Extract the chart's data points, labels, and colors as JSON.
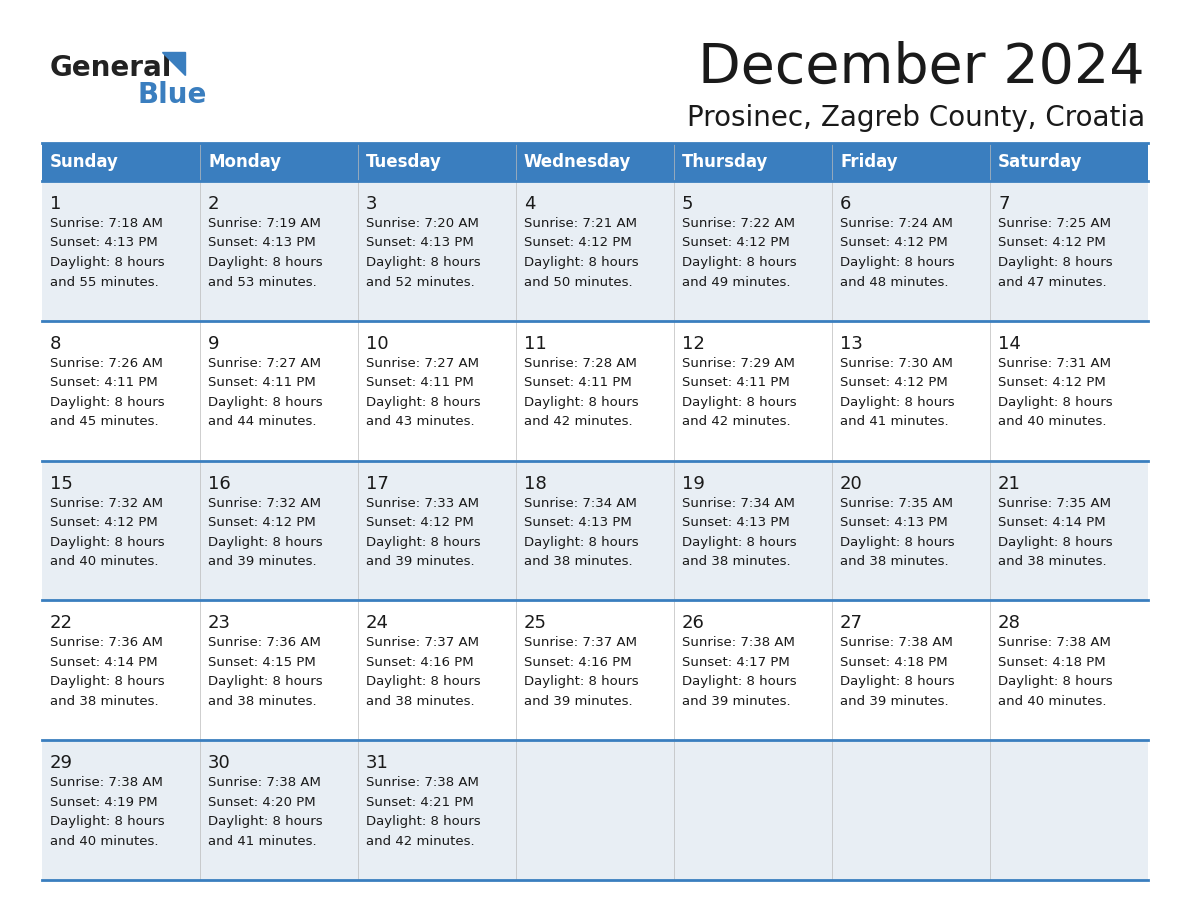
{
  "title": "December 2024",
  "subtitle": "Prosinec, Zagreb County, Croatia",
  "header_color": "#3a7ebf",
  "header_text_color": "#ffffff",
  "cell_bg_odd": "#e8eef4",
  "cell_bg_even": "#ffffff",
  "border_color": "#3a7ebf",
  "day_headers": [
    "Sunday",
    "Monday",
    "Tuesday",
    "Wednesday",
    "Thursday",
    "Friday",
    "Saturday"
  ],
  "weeks": [
    [
      {
        "day": "1",
        "sunrise": "7:18 AM",
        "sunset": "4:13 PM",
        "dl1": "Daylight: 8 hours",
        "dl2": "and 55 minutes."
      },
      {
        "day": "2",
        "sunrise": "7:19 AM",
        "sunset": "4:13 PM",
        "dl1": "Daylight: 8 hours",
        "dl2": "and 53 minutes."
      },
      {
        "day": "3",
        "sunrise": "7:20 AM",
        "sunset": "4:13 PM",
        "dl1": "Daylight: 8 hours",
        "dl2": "and 52 minutes."
      },
      {
        "day": "4",
        "sunrise": "7:21 AM",
        "sunset": "4:12 PM",
        "dl1": "Daylight: 8 hours",
        "dl2": "and 50 minutes."
      },
      {
        "day": "5",
        "sunrise": "7:22 AM",
        "sunset": "4:12 PM",
        "dl1": "Daylight: 8 hours",
        "dl2": "and 49 minutes."
      },
      {
        "day": "6",
        "sunrise": "7:24 AM",
        "sunset": "4:12 PM",
        "dl1": "Daylight: 8 hours",
        "dl2": "and 48 minutes."
      },
      {
        "day": "7",
        "sunrise": "7:25 AM",
        "sunset": "4:12 PM",
        "dl1": "Daylight: 8 hours",
        "dl2": "and 47 minutes."
      }
    ],
    [
      {
        "day": "8",
        "sunrise": "7:26 AM",
        "sunset": "4:11 PM",
        "dl1": "Daylight: 8 hours",
        "dl2": "and 45 minutes."
      },
      {
        "day": "9",
        "sunrise": "7:27 AM",
        "sunset": "4:11 PM",
        "dl1": "Daylight: 8 hours",
        "dl2": "and 44 minutes."
      },
      {
        "day": "10",
        "sunrise": "7:27 AM",
        "sunset": "4:11 PM",
        "dl1": "Daylight: 8 hours",
        "dl2": "and 43 minutes."
      },
      {
        "day": "11",
        "sunrise": "7:28 AM",
        "sunset": "4:11 PM",
        "dl1": "Daylight: 8 hours",
        "dl2": "and 42 minutes."
      },
      {
        "day": "12",
        "sunrise": "7:29 AM",
        "sunset": "4:11 PM",
        "dl1": "Daylight: 8 hours",
        "dl2": "and 42 minutes."
      },
      {
        "day": "13",
        "sunrise": "7:30 AM",
        "sunset": "4:12 PM",
        "dl1": "Daylight: 8 hours",
        "dl2": "and 41 minutes."
      },
      {
        "day": "14",
        "sunrise": "7:31 AM",
        "sunset": "4:12 PM",
        "dl1": "Daylight: 8 hours",
        "dl2": "and 40 minutes."
      }
    ],
    [
      {
        "day": "15",
        "sunrise": "7:32 AM",
        "sunset": "4:12 PM",
        "dl1": "Daylight: 8 hours",
        "dl2": "and 40 minutes."
      },
      {
        "day": "16",
        "sunrise": "7:32 AM",
        "sunset": "4:12 PM",
        "dl1": "Daylight: 8 hours",
        "dl2": "and 39 minutes."
      },
      {
        "day": "17",
        "sunrise": "7:33 AM",
        "sunset": "4:12 PM",
        "dl1": "Daylight: 8 hours",
        "dl2": "and 39 minutes."
      },
      {
        "day": "18",
        "sunrise": "7:34 AM",
        "sunset": "4:13 PM",
        "dl1": "Daylight: 8 hours",
        "dl2": "and 38 minutes."
      },
      {
        "day": "19",
        "sunrise": "7:34 AM",
        "sunset": "4:13 PM",
        "dl1": "Daylight: 8 hours",
        "dl2": "and 38 minutes."
      },
      {
        "day": "20",
        "sunrise": "7:35 AM",
        "sunset": "4:13 PM",
        "dl1": "Daylight: 8 hours",
        "dl2": "and 38 minutes."
      },
      {
        "day": "21",
        "sunrise": "7:35 AM",
        "sunset": "4:14 PM",
        "dl1": "Daylight: 8 hours",
        "dl2": "and 38 minutes."
      }
    ],
    [
      {
        "day": "22",
        "sunrise": "7:36 AM",
        "sunset": "4:14 PM",
        "dl1": "Daylight: 8 hours",
        "dl2": "and 38 minutes."
      },
      {
        "day": "23",
        "sunrise": "7:36 AM",
        "sunset": "4:15 PM",
        "dl1": "Daylight: 8 hours",
        "dl2": "and 38 minutes."
      },
      {
        "day": "24",
        "sunrise": "7:37 AM",
        "sunset": "4:16 PM",
        "dl1": "Daylight: 8 hours",
        "dl2": "and 38 minutes."
      },
      {
        "day": "25",
        "sunrise": "7:37 AM",
        "sunset": "4:16 PM",
        "dl1": "Daylight: 8 hours",
        "dl2": "and 39 minutes."
      },
      {
        "day": "26",
        "sunrise": "7:38 AM",
        "sunset": "4:17 PM",
        "dl1": "Daylight: 8 hours",
        "dl2": "and 39 minutes."
      },
      {
        "day": "27",
        "sunrise": "7:38 AM",
        "sunset": "4:18 PM",
        "dl1": "Daylight: 8 hours",
        "dl2": "and 39 minutes."
      },
      {
        "day": "28",
        "sunrise": "7:38 AM",
        "sunset": "4:18 PM",
        "dl1": "Daylight: 8 hours",
        "dl2": "and 40 minutes."
      }
    ],
    [
      {
        "day": "29",
        "sunrise": "7:38 AM",
        "sunset": "4:19 PM",
        "dl1": "Daylight: 8 hours",
        "dl2": "and 40 minutes."
      },
      {
        "day": "30",
        "sunrise": "7:38 AM",
        "sunset": "4:20 PM",
        "dl1": "Daylight: 8 hours",
        "dl2": "and 41 minutes."
      },
      {
        "day": "31",
        "sunrise": "7:38 AM",
        "sunset": "4:21 PM",
        "dl1": "Daylight: 8 hours",
        "dl2": "and 42 minutes."
      },
      null,
      null,
      null,
      null
    ]
  ],
  "logo_general": "General",
  "logo_blue": "Blue",
  "logo_general_color": "#222222",
  "logo_blue_color": "#3a7ebf",
  "logo_triangle_color": "#3a7ebf"
}
